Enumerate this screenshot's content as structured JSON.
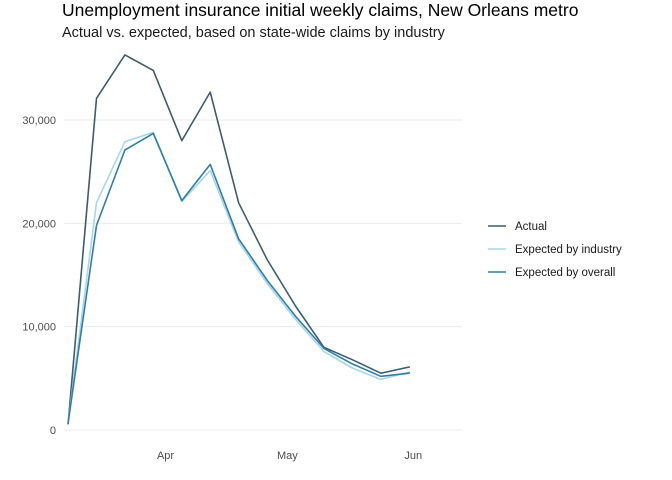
{
  "chart_data": {
    "type": "line",
    "title": "Unemployment insurance initial weekly claims, New Orleans metro",
    "subtitle": "Actual vs. expected, based on state-wide claims by industry",
    "xlabel": "",
    "ylabel": "",
    "ylim": [
      0,
      36000
    ],
    "yticks": [
      0,
      10000,
      20000,
      30000
    ],
    "ytick_labels": [
      "0",
      "10,000",
      "20,000",
      "30,000"
    ],
    "xlim": [
      "2020-03-07",
      "2020-06-13"
    ],
    "xticks": [
      "Apr",
      "May",
      "Jun"
    ],
    "xtick_dates": [
      "2020-04-01",
      "2020-05-01",
      "2020-06-01"
    ],
    "x": [
      "2020-03-08",
      "2020-03-15",
      "2020-03-22",
      "2020-03-29",
      "2020-04-05",
      "2020-04-12",
      "2020-04-19",
      "2020-04-26",
      "2020-05-03",
      "2020-05-10",
      "2020-05-17",
      "2020-05-24",
      "2020-05-31",
      "2020-06-07"
    ],
    "series": [
      {
        "name": "Actual",
        "color": "#3d5c6e",
        "values": [
          600,
          32100,
          36300,
          34800,
          28000,
          32700,
          22000,
          16500,
          12000,
          8000,
          6800,
          5500,
          6100,
          null
        ]
      },
      {
        "name": "Expected by industry",
        "color": "#a7d6ea",
        "values": [
          700,
          22000,
          27900,
          28800,
          22100,
          25100,
          18200,
          14200,
          10700,
          7600,
          6000,
          4900,
          5600,
          null
        ]
      },
      {
        "name": "Expected by overall",
        "color": "#2f7ea8",
        "values": [
          700,
          19800,
          27100,
          28700,
          22200,
          25700,
          18500,
          14500,
          11000,
          7900,
          6400,
          5200,
          5500,
          null
        ]
      }
    ],
    "legend_position": "right",
    "grid": true
  }
}
